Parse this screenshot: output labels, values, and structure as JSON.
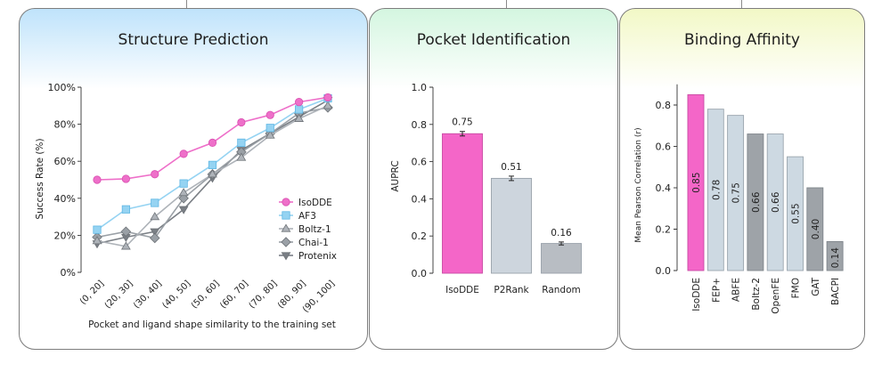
{
  "panels": {
    "structure": {
      "title": "Structure Prediction"
    },
    "pocket": {
      "title": "Pocket Identification"
    },
    "affinity": {
      "title": "Binding Affinity"
    }
  },
  "colors": {
    "structure_bg_top": "#bfe3fb",
    "pocket_bg_top": "#d4f6e0",
    "affinity_bg_top": "#f2f8c6"
  },
  "chart_data": [
    {
      "type": "line",
      "title": "Structure Prediction",
      "xlabel": "Pocket and ligand shape similarity to the training set",
      "ylabel": "Success Rate (%)",
      "categories": [
        "(0, 20]",
        "(20, 30]",
        "(30, 40]",
        "(40, 50]",
        "(50, 60]",
        "(60, 70]",
        "(70, 80]",
        "(80, 90]",
        "(90, 100]"
      ],
      "ylim": [
        0,
        100
      ],
      "yticks": [
        "0%",
        "20%",
        "40%",
        "60%",
        "80%",
        "100%"
      ],
      "legend_position": "lower-right",
      "series": [
        {
          "name": "IsoDDE",
          "color": "#ee6fc9",
          "marker": "circle",
          "values": [
            50,
            50.5,
            53,
            64,
            70,
            81,
            85,
            92,
            94.5
          ]
        },
        {
          "name": "AF3",
          "color": "#95d3f2",
          "marker": "square",
          "values": [
            23,
            34,
            37.5,
            48,
            58,
            70,
            78,
            88,
            94
          ]
        },
        {
          "name": "Boltz-1",
          "color": "#aeb3b9",
          "marker": "triangle",
          "values": [
            17,
            14,
            30,
            43,
            53,
            62,
            74,
            83,
            90
          ]
        },
        {
          "name": "Chai-1",
          "color": "#9aa0a6",
          "marker": "diamond",
          "values": [
            19,
            22,
            18.5,
            40,
            53,
            65,
            75,
            86,
            89
          ]
        },
        {
          "name": "Protenix",
          "color": "#7a7f85",
          "marker": "triangle-down",
          "values": [
            15.5,
            19,
            22,
            34,
            51,
            66,
            75,
            84,
            93
          ]
        }
      ]
    },
    {
      "type": "bar",
      "title": "Pocket Identification",
      "ylabel": "AUPRC",
      "categories": [
        "IsoDDE",
        "P2Rank",
        "Random"
      ],
      "values": [
        0.75,
        0.51,
        0.16
      ],
      "value_labels": [
        "0.75",
        "0.51",
        "0.16"
      ],
      "errors": [
        0.012,
        0.012,
        0.008
      ],
      "colors": [
        "#f466c8",
        "#cdd5dd",
        "#b8bdc3"
      ],
      "ylim": [
        0,
        1.0
      ],
      "yticks": [
        "0.0",
        "0.2",
        "0.4",
        "0.6",
        "0.8",
        "1.0"
      ]
    },
    {
      "type": "bar",
      "title": "Binding Affinity",
      "ylabel": "Mean Pearson Correlation (r)",
      "categories": [
        "IsoDDE",
        "FEP+",
        "ABFE",
        "Boltz-2",
        "OpenFE",
        "FMO",
        "GAT",
        "BACPI"
      ],
      "values": [
        0.85,
        0.78,
        0.75,
        0.66,
        0.66,
        0.55,
        0.4,
        0.14
      ],
      "value_labels": [
        "0.85",
        "0.78",
        "0.75",
        "0.66",
        "0.66",
        "0.55",
        "0.40",
        "0.14"
      ],
      "colors": [
        "#f466c8",
        "#cdd9e2",
        "#cdd9e2",
        "#9ea3a8",
        "#cdd9e2",
        "#cdd9e2",
        "#9ea3a8",
        "#9ea3a8"
      ],
      "ylim": [
        0,
        0.9
      ],
      "yticks": [
        "0.0",
        "0.2",
        "0.4",
        "0.6",
        "0.8"
      ]
    }
  ]
}
